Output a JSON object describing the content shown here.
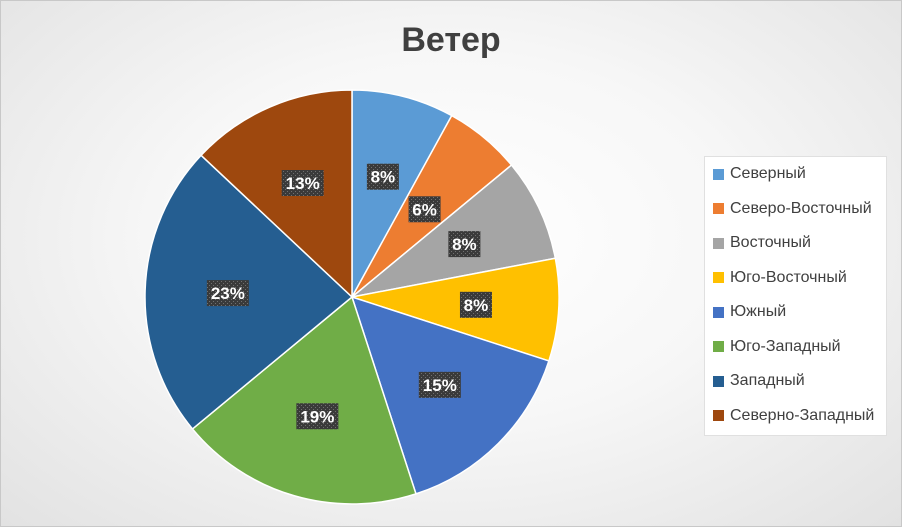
{
  "chart_data": {
    "type": "pie",
    "title": "Ветер",
    "legend_position": "right",
    "start_angle": "top",
    "direction": "clockwise",
    "slices": [
      {
        "name": "Северный",
        "value": 8,
        "label": "8%",
        "color": "#5B9BD5"
      },
      {
        "name": "Северо-Восточный",
        "value": 6,
        "label": "6%",
        "color": "#ED7D31"
      },
      {
        "name": "Восточный",
        "value": 8,
        "label": "8%",
        "color": "#A5A5A5"
      },
      {
        "name": "Юго-Восточный",
        "value": 8,
        "label": "8%",
        "color": "#FFC000"
      },
      {
        "name": "Южный",
        "value": 15,
        "label": "15%",
        "color": "#4472C4"
      },
      {
        "name": "Юго-Западный",
        "value": 19,
        "label": "19%",
        "color": "#70AD47"
      },
      {
        "name": "Западный",
        "value": 23,
        "label": "23%",
        "color": "#255E91"
      },
      {
        "name": "Северно-Западный",
        "value": 13,
        "label": "13%",
        "color": "#9E480E"
      }
    ]
  }
}
